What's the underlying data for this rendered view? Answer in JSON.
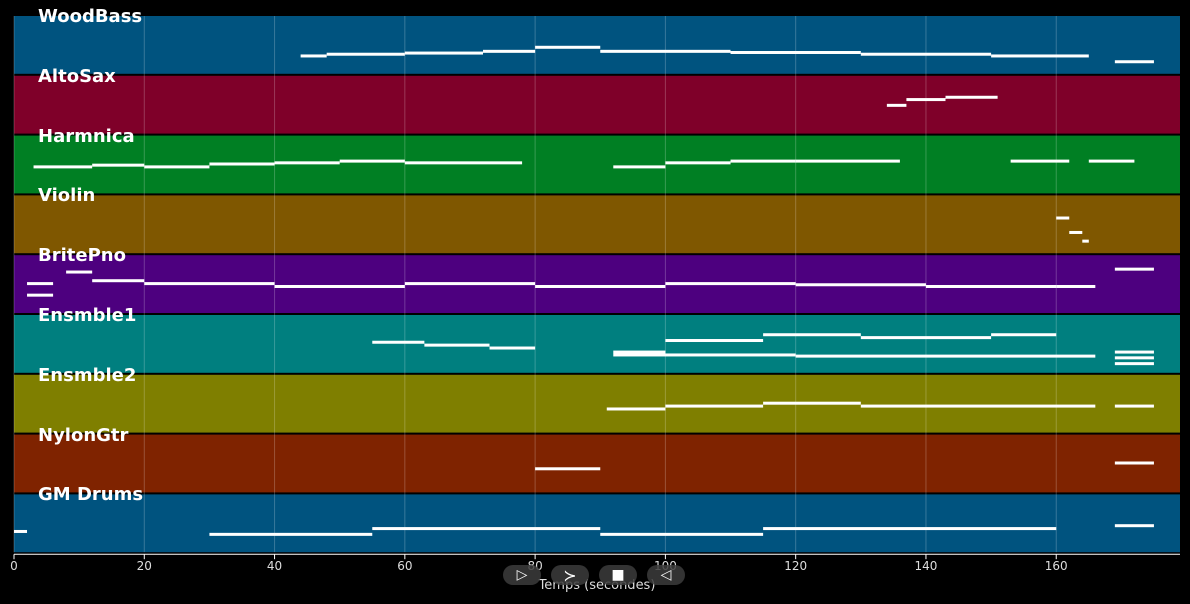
{
  "chart_data": {
    "type": "piano-roll",
    "xlabel": "Temps (secondes)",
    "xlim": [
      0,
      179
    ],
    "x_ticks": [
      0,
      20,
      40,
      60,
      80,
      100,
      120,
      140,
      160
    ],
    "grid": true,
    "tracks": [
      {
        "name": "WoodBass",
        "color": "#00537f",
        "segments": [
          [
            44,
            48,
            0.3
          ],
          [
            48,
            60,
            0.33
          ],
          [
            60,
            72,
            0.35
          ],
          [
            72,
            80,
            0.38
          ],
          [
            80,
            90,
            0.45
          ],
          [
            90,
            110,
            0.38
          ],
          [
            110,
            130,
            0.36
          ],
          [
            130,
            150,
            0.33
          ],
          [
            150,
            165,
            0.3
          ],
          [
            169,
            175,
            0.2
          ]
        ]
      },
      {
        "name": "AltoSax",
        "color": "#7f0029",
        "segments": [
          [
            134,
            137,
            0.48
          ],
          [
            137,
            143,
            0.58
          ],
          [
            143,
            151,
            0.62
          ]
        ]
      },
      {
        "name": "Harmnica",
        "color": "#007f23",
        "segments": [
          [
            3,
            12,
            0.45
          ],
          [
            12,
            20,
            0.48
          ],
          [
            20,
            30,
            0.45
          ],
          [
            30,
            40,
            0.5
          ],
          [
            40,
            50,
            0.52
          ],
          [
            50,
            60,
            0.55
          ],
          [
            60,
            78,
            0.52
          ],
          [
            92,
            100,
            0.45
          ],
          [
            100,
            110,
            0.52
          ],
          [
            110,
            120,
            0.55
          ],
          [
            120,
            136,
            0.55
          ],
          [
            153,
            162,
            0.55
          ],
          [
            165,
            172,
            0.55
          ]
        ]
      },
      {
        "name": "Violin",
        "color": "#7f5700",
        "segments": [
          [
            160,
            162,
            0.6
          ],
          [
            162,
            164,
            0.35
          ],
          [
            164,
            165,
            0.2
          ]
        ]
      },
      {
        "name": "BritePno",
        "color": "#4d007f",
        "segments": [
          [
            2,
            6,
            0.5
          ],
          [
            2,
            6,
            0.3
          ],
          [
            8,
            12,
            0.7
          ],
          [
            12,
            20,
            0.55
          ],
          [
            20,
            40,
            0.5
          ],
          [
            40,
            60,
            0.45
          ],
          [
            60,
            80,
            0.5
          ],
          [
            80,
            100,
            0.45
          ],
          [
            100,
            120,
            0.5
          ],
          [
            120,
            140,
            0.48
          ],
          [
            140,
            160,
            0.45
          ],
          [
            160,
            166,
            0.45
          ],
          [
            169,
            175,
            0.75
          ]
        ]
      },
      {
        "name": "Ensmble1",
        "color": "#007f7f",
        "segments": [
          [
            55,
            63,
            0.52
          ],
          [
            63,
            73,
            0.47
          ],
          [
            73,
            80,
            0.42
          ],
          [
            92,
            100,
            0.35
          ],
          [
            100,
            115,
            0.55
          ],
          [
            115,
            130,
            0.65
          ],
          [
            130,
            150,
            0.6
          ],
          [
            150,
            160,
            0.65
          ],
          [
            92,
            120,
            0.3
          ],
          [
            120,
            166,
            0.28
          ],
          [
            169,
            175,
            0.35
          ],
          [
            169,
            175,
            0.25
          ],
          [
            169,
            175,
            0.15
          ]
        ]
      },
      {
        "name": "Ensmble2",
        "color": "#7f7f00",
        "segments": [
          [
            91,
            100,
            0.4
          ],
          [
            100,
            115,
            0.45
          ],
          [
            115,
            130,
            0.5
          ],
          [
            130,
            166,
            0.45
          ],
          [
            169,
            175,
            0.45
          ]
        ]
      },
      {
        "name": "NylonGtr",
        "color": "#7f2300",
        "segments": [
          [
            80,
            90,
            0.4
          ],
          [
            169,
            175,
            0.5
          ]
        ]
      },
      {
        "name": "GM Drums",
        "color": "#00537f",
        "segments": [
          [
            0,
            2,
            0.35
          ],
          [
            30,
            55,
            0.3
          ],
          [
            55,
            90,
            0.4
          ],
          [
            90,
            115,
            0.3
          ],
          [
            115,
            160,
            0.4
          ],
          [
            169,
            175,
            0.45
          ]
        ]
      }
    ]
  },
  "controls": {
    "play_glyph": "▷",
    "forward_glyph": "≻",
    "stop_glyph": "■",
    "back_glyph": "◁"
  }
}
